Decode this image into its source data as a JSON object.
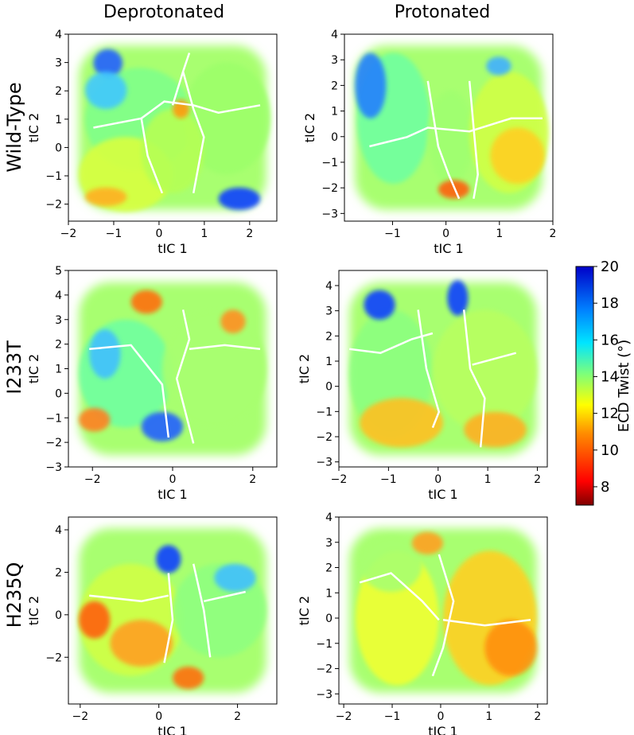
{
  "figure": {
    "column_titles": [
      "Deprotonated",
      "Protonated"
    ],
    "row_labels": [
      "Wild-Type",
      "I233T",
      "H235Q"
    ]
  },
  "colorbar": {
    "label": "ECD Twist (°)",
    "min": 7,
    "max": 20,
    "ticks": [
      8,
      10,
      12,
      14,
      16,
      18,
      20
    ],
    "colormap": "jet-reversed",
    "colors": [
      "#800000",
      "#ff0000",
      "#ff8c00",
      "#ffff00",
      "#7dff7a",
      "#00e5ff",
      "#0080ff",
      "#0000c8"
    ]
  },
  "chart_data": [
    {
      "type": "heatmap",
      "id": "wt-deprot",
      "row": "Wild-Type",
      "column": "Deprotonated",
      "xlabel": "tIC 1",
      "ylabel": "tIC 2",
      "xlim": [
        -2,
        2.6
      ],
      "ylim": [
        -2.6,
        4
      ],
      "xticks": [
        -2,
        -1,
        0,
        1,
        2
      ],
      "yticks": [
        -2,
        -1,
        0,
        1,
        2,
        3,
        4
      ],
      "x_tick_labels": [
        "−2",
        "−1",
        "0",
        "1",
        "2"
      ],
      "y_tick_labels": [
        "−2",
        "−1",
        "0",
        "1",
        "2",
        "3",
        "4"
      ]
    },
    {
      "type": "heatmap",
      "id": "wt-prot",
      "row": "Wild-Type",
      "column": "Protonated",
      "xlabel": "tIC 1",
      "ylabel": "tIC 2",
      "xlim": [
        -1.9,
        2
      ],
      "ylim": [
        -3.3,
        4
      ],
      "xticks": [
        -1,
        0,
        1,
        2
      ],
      "yticks": [
        -3,
        -2,
        -1,
        0,
        1,
        2,
        3,
        4
      ],
      "x_tick_labels": [
        "−1",
        "0",
        "1",
        "2"
      ],
      "y_tick_labels": [
        "−3",
        "−2",
        "−1",
        "0",
        "1",
        "2",
        "3",
        "4"
      ]
    },
    {
      "type": "heatmap",
      "id": "i233t-deprot",
      "row": "I233T",
      "column": "Deprotonated",
      "xlabel": "tIC 1",
      "ylabel": "tIC 2",
      "xlim": [
        -2.6,
        2.6
      ],
      "ylim": [
        -3,
        5
      ],
      "xticks": [
        -2,
        0,
        2
      ],
      "yticks": [
        -3,
        -2,
        -1,
        0,
        1,
        2,
        3,
        4,
        5
      ],
      "x_tick_labels": [
        "−2",
        "0",
        "2"
      ],
      "y_tick_labels": [
        "−3",
        "−2",
        "−1",
        "0",
        "1",
        "2",
        "3",
        "4",
        "5"
      ]
    },
    {
      "type": "heatmap",
      "id": "i233t-prot",
      "row": "I233T",
      "column": "Protonated",
      "xlabel": "tIC 1",
      "ylabel": "tIC 2",
      "xlim": [
        -2,
        2.2
      ],
      "ylim": [
        -3.2,
        4.6
      ],
      "xticks": [
        -2,
        -1,
        0,
        1,
        2
      ],
      "yticks": [
        -3,
        -2,
        -1,
        0,
        1,
        2,
        3,
        4
      ],
      "x_tick_labels": [
        "−2",
        "−1",
        "0",
        "1",
        "2"
      ],
      "y_tick_labels": [
        "−3",
        "−2",
        "−1",
        "0",
        "1",
        "2",
        "3",
        "4"
      ]
    },
    {
      "type": "heatmap",
      "id": "h235q-deprot",
      "row": "H235Q",
      "column": "Deprotonated",
      "xlabel": "tIC 1",
      "ylabel": "tIC 2",
      "xlim": [
        -2.3,
        3
      ],
      "ylim": [
        -4.2,
        4.6
      ],
      "xticks": [
        -2,
        0,
        2
      ],
      "yticks": [
        -2,
        0,
        2,
        4
      ],
      "x_tick_labels": [
        "−2",
        "0",
        "2"
      ],
      "y_tick_labels": [
        "−2",
        "0",
        "2",
        "4"
      ]
    },
    {
      "type": "heatmap",
      "id": "h235q-prot",
      "row": "H235Q",
      "column": "Protonated",
      "xlabel": "tIC 1",
      "ylabel": "tIC 2",
      "xlim": [
        -2.1,
        2.2
      ],
      "ylim": [
        -3.4,
        4
      ],
      "xticks": [
        -2,
        -1,
        0,
        1,
        2
      ],
      "yticks": [
        -3,
        -2,
        -1,
        0,
        1,
        2,
        3,
        4
      ],
      "x_tick_labels": [
        "−2",
        "−1",
        "0",
        "1",
        "2"
      ],
      "y_tick_labels": [
        "−3",
        "−2",
        "−1",
        "0",
        "1",
        "2",
        "3",
        "4"
      ]
    }
  ]
}
